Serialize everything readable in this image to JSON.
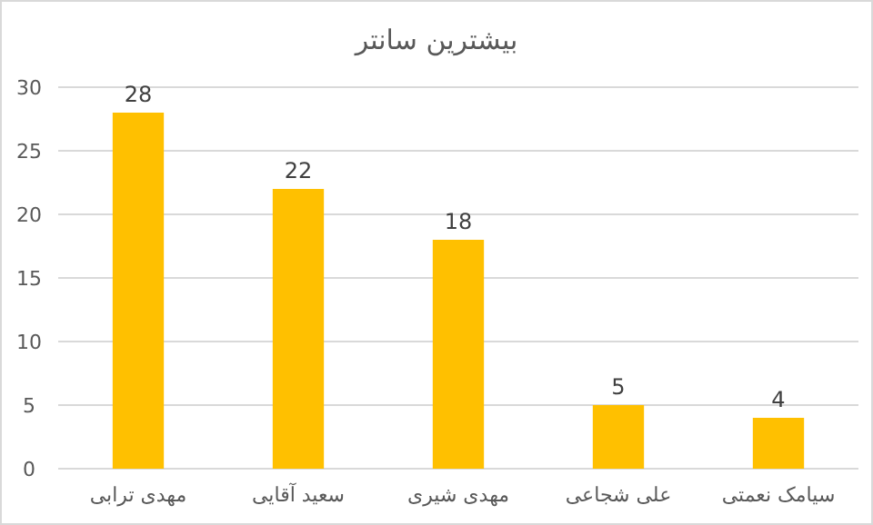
{
  "chart_data": {
    "type": "bar",
    "title": "بیشترین سانتر",
    "categories": [
      "مهدی ترابی",
      "سعید آقایی",
      "مهدی شیری",
      "علی شجاعی",
      "سیامک نعمتی"
    ],
    "values": [
      28,
      22,
      18,
      5,
      4
    ],
    "color": "#ffc000",
    "ylim": [
      0,
      30
    ],
    "yticks": [
      0,
      5,
      10,
      15,
      20,
      25,
      30
    ],
    "grid": "y",
    "data_labels": true
  }
}
